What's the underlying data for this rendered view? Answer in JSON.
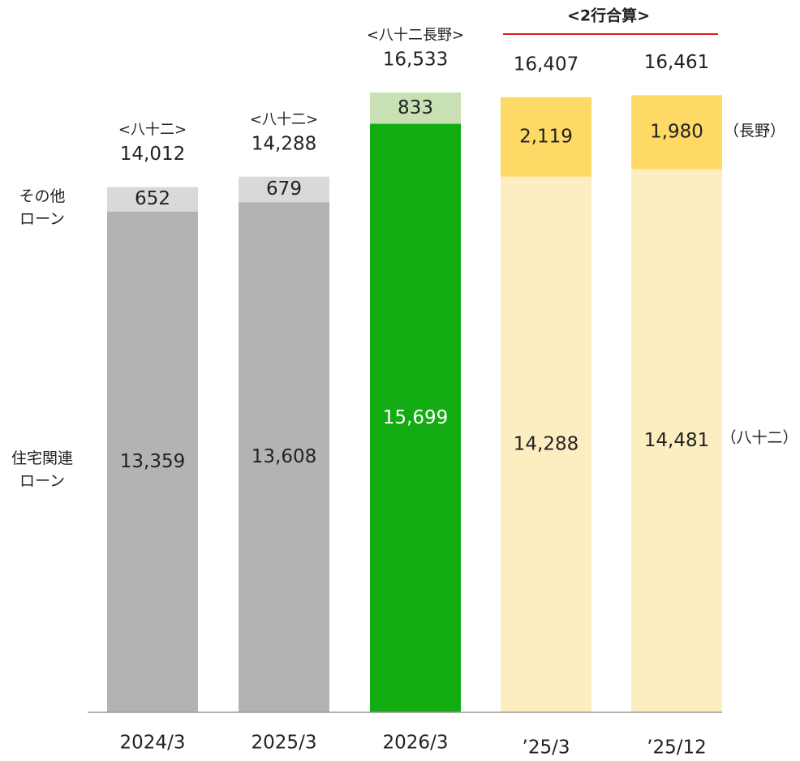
{
  "chart_data": {
    "type": "stacked_bar",
    "categories": [
      "2024/3",
      "2025/3",
      "2026/3",
      "’25/3",
      "’25/12"
    ],
    "series": [
      {
        "name": "住宅関連\nローン",
        "colors": [
          "#b3b3b3",
          "#b3b3b3",
          "#13ad13",
          "#fdeec2",
          "#fdeec2"
        ],
        "label_colors": [
          "#222222",
          "#222222",
          "#ffffff",
          "#222222",
          "#222222"
        ],
        "values": [
          13359,
          13608,
          15699,
          14288,
          14481
        ],
        "value_labels": [
          "13,359",
          "13,608",
          "15,699",
          "14,288",
          "14,481"
        ]
      },
      {
        "name": "その他\nローン",
        "colors": [
          "#d9d9d9",
          "#d9d9d9",
          "#c8e0b4",
          "#ffd966",
          "#ffd966"
        ],
        "label_colors": [
          "#222222",
          "#222222",
          "#222222",
          "#222222",
          "#222222"
        ],
        "values": [
          652,
          679,
          833,
          2119,
          1980
        ],
        "value_labels": [
          "652",
          "679",
          "833",
          "2,119",
          "1,980"
        ]
      }
    ],
    "totals": [
      14012,
      14288,
      16533,
      16407,
      16461
    ],
    "total_labels": [
      "14,012",
      "14,288",
      "16,533",
      "16,407",
      "16,461"
    ],
    "bar_headers": [
      "<八十二>",
      "<八十二>",
      "<八十二長野>",
      null,
      null
    ],
    "group_header": "<2行合算>",
    "annotations": [
      "（長野）",
      "（八十二）"
    ],
    "ylim": [
      0,
      19000
    ]
  }
}
